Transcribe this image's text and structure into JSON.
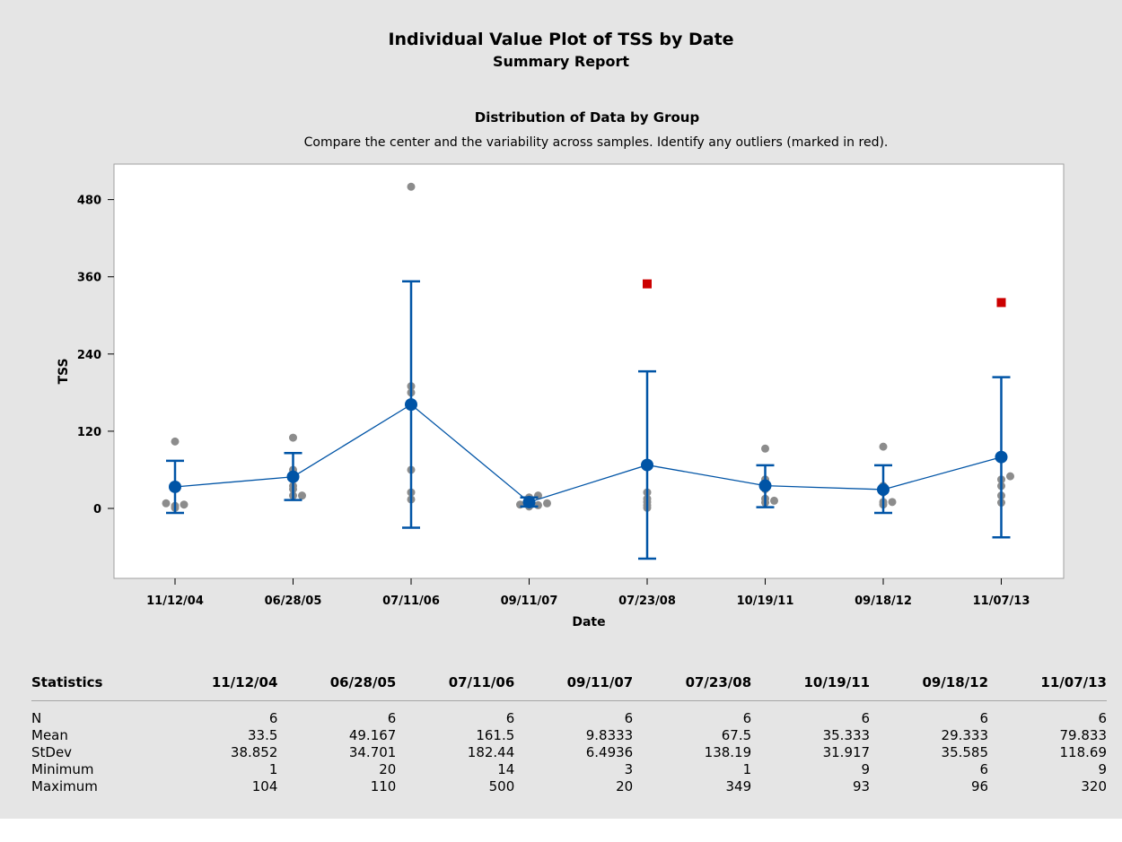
{
  "report": {
    "title": "Individual Value Plot of TSS by Date",
    "subtitle": "Summary Report",
    "section_title": "Distribution of Data by Group",
    "section_description": "Compare the center and the variability across samples. Identify any outliers (marked in red)."
  },
  "colors": {
    "background": "#e5e5e5",
    "plot_area": "#ffffff",
    "mean_series": "#0054a6",
    "data_points": "#8c8c8c",
    "outlier": "#cc0000"
  },
  "chart_data": {
    "type": "scatter",
    "title": "Distribution of Data by Group",
    "xlabel": "Date",
    "ylabel": "TSS",
    "ylim": [
      -105,
      525
    ],
    "yticks": [
      0,
      120,
      240,
      360,
      480
    ],
    "categories": [
      "11/12/04",
      "06/28/05",
      "07/11/06",
      "09/11/07",
      "07/23/08",
      "10/19/11",
      "09/18/12",
      "11/07/13"
    ],
    "means": [
      33.5,
      49.167,
      161.5,
      9.8333,
      67.5,
      35.333,
      29.333,
      79.833
    ],
    "interval_low": [
      -7,
      13,
      -30,
      3,
      -78,
      2,
      -7,
      -45
    ],
    "interval_high": [
      74,
      86,
      353,
      17,
      213,
      67,
      67,
      204
    ],
    "points": [
      [
        1,
        4,
        6,
        8,
        34,
        104
      ],
      [
        20,
        20,
        30,
        35,
        60,
        110
      ],
      [
        14,
        25,
        60,
        180,
        190,
        500
      ],
      [
        3,
        5,
        6,
        8,
        17,
        20
      ],
      [
        1,
        5,
        10,
        15,
        25
      ],
      [
        9,
        12,
        15,
        30,
        45,
        93
      ],
      [
        6,
        10,
        10,
        25,
        35,
        96
      ],
      [
        9,
        20,
        35,
        45,
        50
      ]
    ],
    "outliers": [
      {
        "category": "07/23/08",
        "value": 349
      },
      {
        "category": "11/07/13",
        "value": 320
      }
    ],
    "grid": false,
    "legend": "none"
  },
  "table": {
    "header_label": "Statistics",
    "columns": [
      "11/12/04",
      "06/28/05",
      "07/11/06",
      "09/11/07",
      "07/23/08",
      "10/19/11",
      "09/18/12",
      "11/07/13"
    ],
    "rows": [
      {
        "label": "N",
        "values": [
          "6",
          "6",
          "6",
          "6",
          "6",
          "6",
          "6",
          "6"
        ]
      },
      {
        "label": "Mean",
        "values": [
          "33.5",
          "49.167",
          "161.5",
          "9.8333",
          "67.5",
          "35.333",
          "29.333",
          "79.833"
        ]
      },
      {
        "label": "StDev",
        "values": [
          "38.852",
          "34.701",
          "182.44",
          "6.4936",
          "138.19",
          "31.917",
          "35.585",
          "118.69"
        ]
      },
      {
        "label": "Minimum",
        "values": [
          "1",
          "20",
          "14",
          "3",
          "1",
          "9",
          "6",
          "9"
        ]
      },
      {
        "label": "Maximum",
        "values": [
          "104",
          "110",
          "500",
          "20",
          "349",
          "93",
          "96",
          "320"
        ]
      }
    ]
  }
}
